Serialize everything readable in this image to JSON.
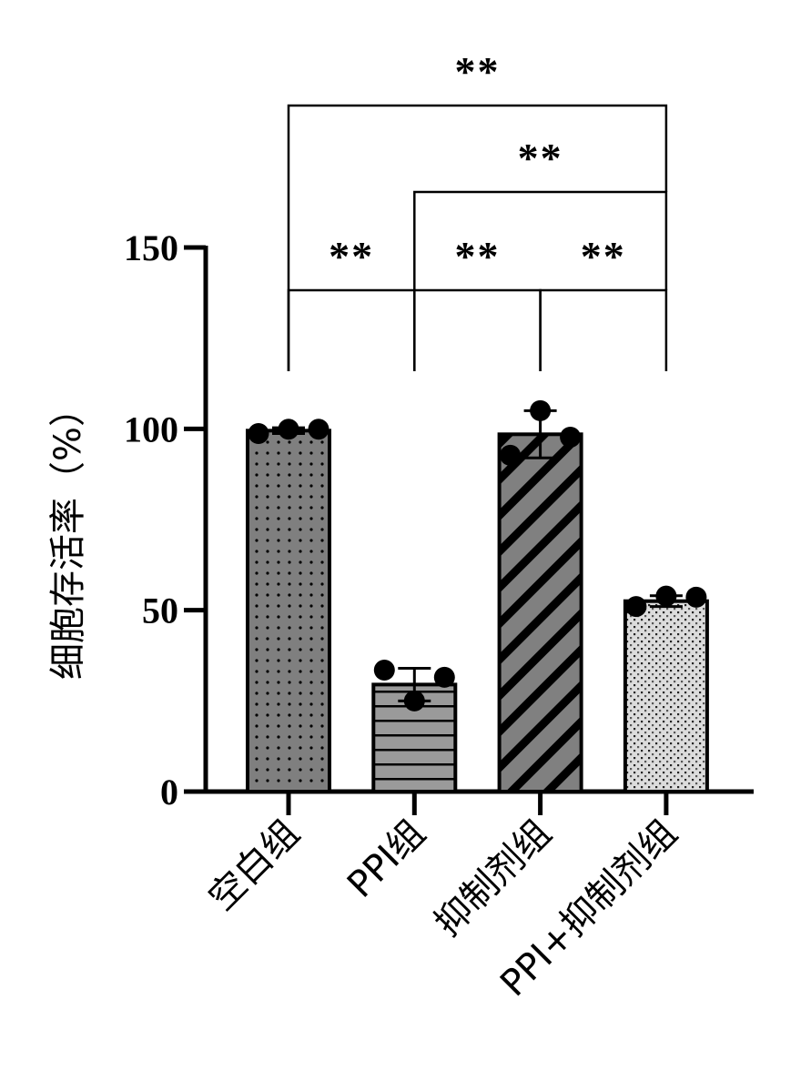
{
  "chart_data": {
    "type": "bar",
    "ylabel": "细胞存活率（%）",
    "xlabel": "",
    "title": "",
    "ylim": [
      0,
      150
    ],
    "yticks": [
      0,
      50,
      100,
      150
    ],
    "categories": [
      "空白组",
      "PPI组",
      "抑制剂组",
      "PPI+抑制剂组"
    ],
    "values": [
      99.5,
      29.5,
      98.5,
      52.5
    ],
    "errors": [
      0.8,
      4.5,
      6.5,
      1.5
    ],
    "points": [
      [
        98.7,
        99.9,
        99.9
      ],
      [
        33.5,
        25.0,
        31.5
      ],
      [
        92.7,
        105.0,
        97.7
      ],
      [
        51.0,
        53.9,
        53.6
      ]
    ],
    "bar_patterns": [
      "dots",
      "horizontal-stripes",
      "diagonal-stripes",
      "checker"
    ],
    "bar_colors": [
      "#7f7f7f",
      "#999999",
      "#808080",
      "#d9d9d9"
    ],
    "significance": [
      {
        "from": 0,
        "to": 1,
        "label": "**",
        "level": 1
      },
      {
        "from": 1,
        "to": 2,
        "label": "**",
        "level": 1
      },
      {
        "from": 2,
        "to": 3,
        "label": "**",
        "level": 1
      },
      {
        "from": 1,
        "to": 3,
        "label": "**",
        "level": 2
      },
      {
        "from": 0,
        "to": 3,
        "label": "**",
        "level": 3
      }
    ]
  }
}
